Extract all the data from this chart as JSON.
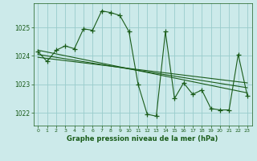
{
  "title": "Graphe pression niveau de la mer (hPa)",
  "bg_color": "#cceaea",
  "grid_color": "#99cccc",
  "line_color": "#1a5c1a",
  "xlim": [
    -0.5,
    23.5
  ],
  "ylim": [
    1021.55,
    1025.85
  ],
  "yticks": [
    1022,
    1023,
    1024,
    1025
  ],
  "xticks": [
    0,
    1,
    2,
    3,
    4,
    5,
    6,
    7,
    8,
    9,
    10,
    11,
    12,
    13,
    14,
    15,
    16,
    17,
    18,
    19,
    20,
    21,
    22,
    23
  ],
  "series_x": [
    0,
    1,
    2,
    3,
    4,
    5,
    6,
    7,
    8,
    9,
    10,
    11,
    12,
    13,
    14,
    15,
    16,
    17,
    18,
    19,
    20,
    21,
    22,
    23
  ],
  "series_y": [
    1024.15,
    1023.8,
    1024.2,
    1024.35,
    1024.25,
    1024.95,
    1024.9,
    1025.58,
    1025.52,
    1025.42,
    1024.85,
    1023.0,
    1021.95,
    1021.88,
    1024.85,
    1022.5,
    1023.05,
    1022.65,
    1022.8,
    1022.15,
    1022.1,
    1022.1,
    1024.05,
    1022.6
  ],
  "trend1_x": [
    0,
    23
  ],
  "trend1_y": [
    1024.2,
    1022.7
  ],
  "trend2_x": [
    0,
    23
  ],
  "trend2_y": [
    1024.05,
    1022.88
  ],
  "trend3_x": [
    0,
    23
  ],
  "trend3_y": [
    1023.95,
    1023.05
  ]
}
